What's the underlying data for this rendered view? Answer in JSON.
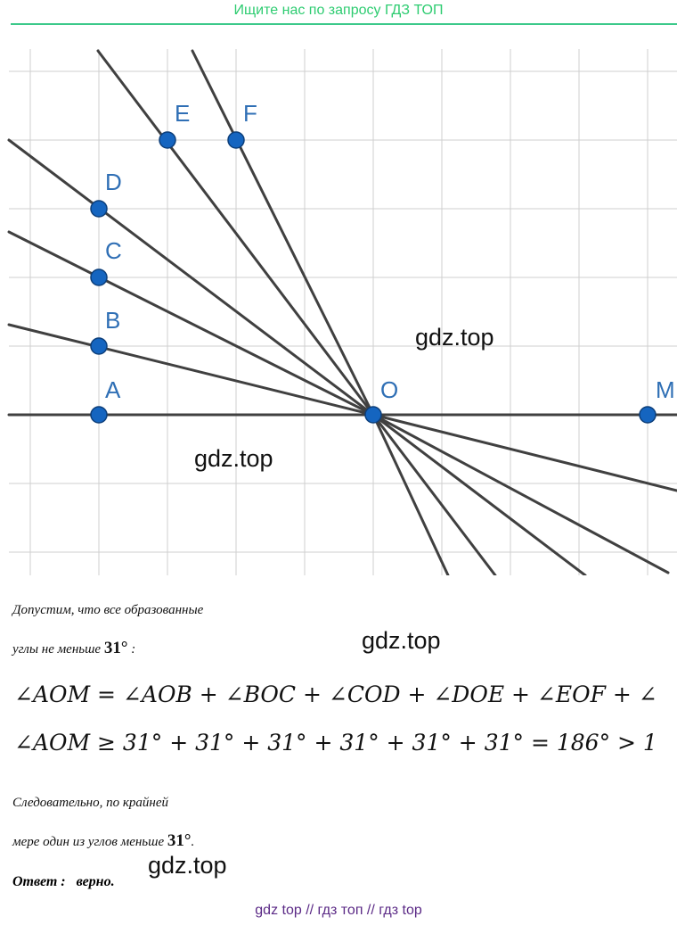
{
  "banner": {
    "text": "Ищите нас по запросу ГДЗ ТОП",
    "color": "#2ecc71"
  },
  "diagram": {
    "points": [
      {
        "label": "E"
      },
      {
        "label": "F"
      },
      {
        "label": "D"
      },
      {
        "label": "C"
      },
      {
        "label": "B"
      },
      {
        "label": "A"
      },
      {
        "label": "O"
      },
      {
        "label": "M"
      }
    ],
    "point_color": "#1565c0",
    "label_color": "#2f6fb5",
    "line_color": "#404040",
    "grid": true
  },
  "watermarks": [
    "gdz.top",
    "gdz.top",
    "gdz.top",
    "gdz.top"
  ],
  "text": {
    "line1": "Допустим, что все образованные",
    "line2_prefix": "углы не меньше ",
    "line2_value": "31°",
    "line2_suffix": " :",
    "formula1": "∠AOM = ∠AOB + ∠BOC + ∠COD + ∠DOE + ∠EOF + ∠",
    "formula2": "∠AOM ≥ 31° + 31° + 31° + 31° + 31° + 31° = 186° > 1",
    "line3": "Следовательно, по крайней",
    "line4_prefix": "мере один из углов меньше ",
    "line4_value": "31°",
    "line4_suffix": ".",
    "answer_label": "Ответ :",
    "answer_value": "верно."
  },
  "footer": {
    "text": "gdz top  //  гдз топ  //  гдз top",
    "color": "#5b2a86"
  }
}
